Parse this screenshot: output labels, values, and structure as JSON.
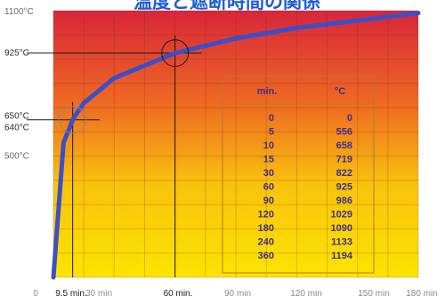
{
  "chart_data": {
    "type": "line",
    "title": "温度と遮断時間の関係",
    "xlabel": "",
    "ylabel": "",
    "xlim": [
      0,
      180
    ],
    "ylim": [
      0,
      1100
    ],
    "x_ticks": [
      {
        "value": 0,
        "label": "0",
        "emphasis": false
      },
      {
        "value": 9.5,
        "label": "9.5 min.",
        "emphasis": true
      },
      {
        "value": 30,
        "label": "30 min",
        "emphasis": false
      },
      {
        "value": 60,
        "label": "60 min.",
        "emphasis": true
      },
      {
        "value": 90,
        "label": "90 min",
        "emphasis": false
      },
      {
        "value": 120,
        "label": "120 min",
        "emphasis": false
      },
      {
        "value": 150,
        "label": "150 min",
        "emphasis": false
      },
      {
        "value": 180,
        "label": "180 min",
        "emphasis": false
      }
    ],
    "y_ticks": [
      {
        "value": 1100,
        "label": "1100°C",
        "emphasis": false
      },
      {
        "value": 925,
        "label": "925°C",
        "emphasis": true
      },
      {
        "value": 650,
        "label": "650°C",
        "emphasis": true
      },
      {
        "value": 640,
        "label": "640°C",
        "emphasis": true
      },
      {
        "value": 500,
        "label": "500°C",
        "emphasis": false
      }
    ],
    "series": [
      {
        "x": [
          0,
          5,
          10,
          15,
          30,
          60,
          90,
          120,
          180
        ],
        "y": [
          0,
          556,
          658,
          719,
          822,
          925,
          986,
          1029,
          1090
        ]
      }
    ],
    "table": {
      "headers": [
        "min.",
        "°C"
      ],
      "rows": [
        [
          "0",
          "0"
        ],
        [
          "5",
          "556"
        ],
        [
          "10",
          "658"
        ],
        [
          "15",
          "719"
        ],
        [
          "30",
          "822"
        ],
        [
          "60",
          "925"
        ],
        [
          "90",
          "986"
        ],
        [
          "120",
          "1029"
        ],
        [
          "180",
          "1090"
        ],
        [
          "240",
          "1133"
        ],
        [
          "360",
          "1194"
        ]
      ]
    },
    "markers": [
      {
        "x": 9.5,
        "y": 650
      },
      {
        "x": 60,
        "y": 925
      }
    ],
    "colors": {
      "line": "#3b4fc8",
      "title": "#1e5bd6",
      "gradient_top": "#d8263a",
      "gradient_mid": "#f07a1e",
      "gradient_bottom": "#fbe000",
      "table_text": "#3b2f8f"
    },
    "grid": true
  }
}
